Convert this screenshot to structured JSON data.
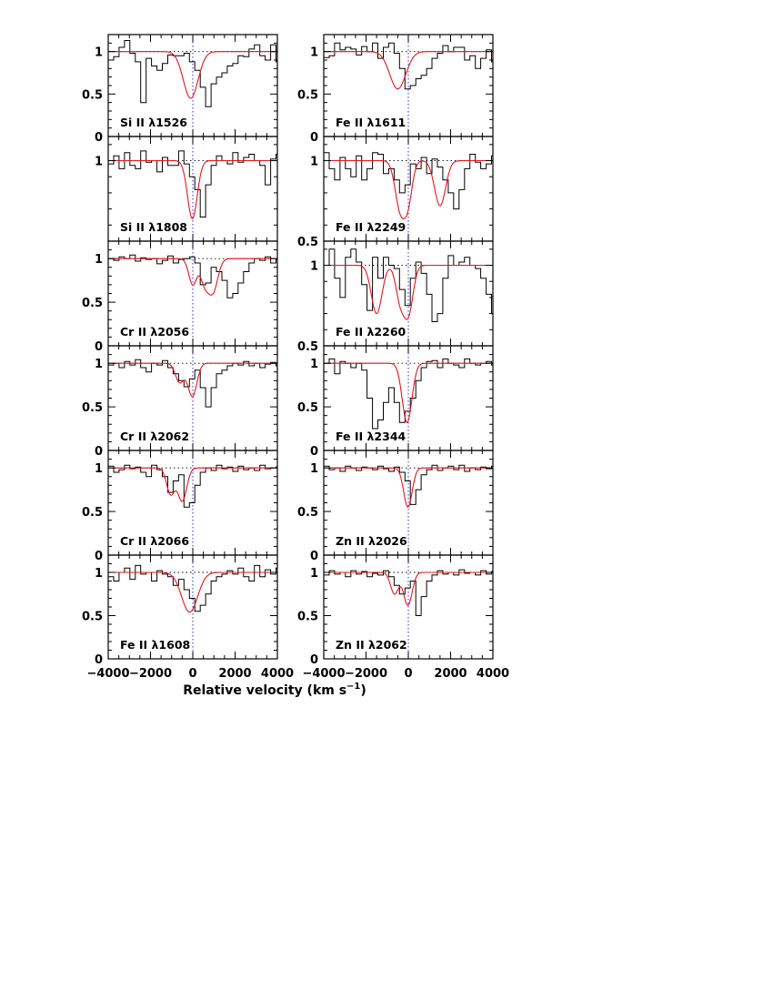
{
  "chart_data": {
    "type": "line",
    "xlabel": "Relative velocity (km s",
    "xlabel_sup": "−1",
    "xlabel_close": ")",
    "xlim": [
      -4000,
      4000
    ],
    "x_ticks": [
      "−4000",
      "−2000",
      "0",
      "2000",
      "4000"
    ],
    "colors": {
      "data": "#000000",
      "model": "#e8141b",
      "zero_velocity": "#2a2ae0",
      "reference": "#000000"
    },
    "bin_width_kms": 256,
    "x_start": -4000,
    "panels": [
      {
        "label": "Si II λ1526",
        "ylim": [
          0,
          1.2
        ],
        "yticks": [
          "0",
          "0.5",
          "1"
        ],
        "model": [
          {
            "center": -100,
            "depth": 0.55,
            "sigma": 350
          }
        ],
        "flux": [
          0.9,
          0.94,
          1.05,
          1.13,
          0.98,
          0.88,
          0.4,
          0.92,
          0.83,
          0.78,
          0.86,
          0.96,
          0.95,
          0.95,
          0.98,
          0.88,
          0.78,
          0.58,
          0.35,
          0.62,
          0.7,
          0.75,
          0.83,
          0.86,
          0.95,
          0.94,
          1.03,
          1.08,
          0.95,
          0.9,
          1.08,
          0.88,
          1.05
        ]
      },
      {
        "label": "Fe II λ1611",
        "ylim": [
          0,
          1.2
        ],
        "yticks": [
          "0",
          "0.5",
          "1"
        ],
        "model": [
          {
            "center": -500,
            "depth": 0.44,
            "sigma": 380
          }
        ],
        "flux": [
          0.93,
          0.95,
          1.1,
          1.02,
          1.05,
          1.03,
          0.96,
          1.06,
          1.0,
          1.1,
          0.92,
          1.05,
          1.1,
          0.98,
          0.8,
          0.56,
          0.6,
          0.68,
          0.72,
          0.8,
          0.92,
          0.98,
          1.07,
          1.0,
          1.05,
          1.05,
          0.9,
          0.95,
          0.8,
          0.92,
          1.02,
          0.88,
          0.98
        ]
      },
      {
        "label": "Si II λ1808",
        "ylim": [
          0.5,
          1.15
        ],
        "yticks": [
          "1"
        ],
        "model": [
          {
            "center": -20,
            "depth": 0.36,
            "sigma": 230
          }
        ],
        "flux": [
          0.98,
          1.03,
          0.95,
          1.05,
          0.97,
          0.95,
          1.06,
          0.99,
          1.0,
          0.93,
          1.02,
          0.97,
          0.97,
          1.06,
          0.98,
          0.9,
          0.82,
          0.65,
          0.85,
          0.97,
          1.03,
          1.0,
          0.98,
          1.05,
          0.99,
          1.02,
          1.04,
          1.0,
          0.97,
          0.85,
          1.01,
          1.04,
          0.98
        ]
      },
      {
        "label": "Fe II λ2249",
        "ylim": [
          0.5,
          1.15
        ],
        "yticks": [
          "0.5",
          "1"
        ],
        "model": [
          {
            "center": -380,
            "depth": 0.3,
            "sigma": 240
          },
          {
            "center": 0,
            "depth": 0.22,
            "sigma": 200
          },
          {
            "center": 1500,
            "depth": 0.28,
            "sigma": 260
          }
        ],
        "flux": [
          1.05,
          0.95,
          0.88,
          1.02,
          0.95,
          0.9,
          1.03,
          0.88,
          0.95,
          1.05,
          1.04,
          0.92,
          0.95,
          0.88,
          0.8,
          0.85,
          0.98,
          0.95,
          1.02,
          0.92,
          1.01,
          0.96,
          0.88,
          0.8,
          0.7,
          0.82,
          0.95,
          1.04,
          0.99,
          0.95,
          0.98,
          1.03,
          1.01
        ]
      },
      {
        "label": "Cr II λ2056",
        "ylim": [
          0,
          1.2
        ],
        "yticks": [
          "0",
          "0.5",
          "1"
        ],
        "model": [
          {
            "center": 0,
            "depth": 0.3,
            "sigma": 190
          },
          {
            "center": 550,
            "depth": 0.25,
            "sigma": 190
          },
          {
            "center": 950,
            "depth": 0.38,
            "sigma": 230
          }
        ],
        "flux": [
          1.0,
          0.98,
          1.02,
          1.0,
          1.04,
          0.97,
          1.01,
          0.99,
          1.0,
          0.94,
          0.98,
          1.03,
          0.95,
          0.99,
          1.0,
          1.02,
          0.95,
          0.7,
          0.72,
          0.9,
          0.85,
          0.75,
          0.55,
          0.6,
          0.72,
          0.85,
          0.95,
          1.0,
          0.98,
          1.02,
          0.95,
          0.99,
          1.0
        ]
      },
      {
        "label": "Fe II λ2260",
        "ylim": [
          0.5,
          1.15
        ],
        "yticks": [
          "0.5",
          "1"
        ],
        "model": [
          {
            "center": -1500,
            "depth": 0.3,
            "sigma": 250
          },
          {
            "center": -400,
            "depth": 0.2,
            "sigma": 200
          },
          {
            "center": 0,
            "depth": 0.3,
            "sigma": 220
          }
        ],
        "flux": [
          1.0,
          1.1,
          0.92,
          0.8,
          1.05,
          1.1,
          1.02,
          0.88,
          0.72,
          1.05,
          0.92,
          1.05,
          1.0,
          0.98,
          0.85,
          0.75,
          0.92,
          1.02,
          0.95,
          0.82,
          0.65,
          0.7,
          0.92,
          1.06,
          1.0,
          1.02,
          1.05,
          1.0,
          0.98,
          0.92,
          0.82,
          0.7,
          0.55
        ]
      },
      {
        "label": "Cr II λ2062",
        "ylim": [
          0,
          1.2
        ],
        "yticks": [
          "0",
          "0.5",
          "1"
        ],
        "model": [
          {
            "center": -620,
            "depth": 0.22,
            "sigma": 200
          },
          {
            "center": -20,
            "depth": 0.38,
            "sigma": 210
          }
        ],
        "flux": [
          0.98,
          1.0,
          0.95,
          1.02,
          0.98,
          1.04,
          0.95,
          0.9,
          1.0,
          0.98,
          1.03,
          0.95,
          0.88,
          0.8,
          0.73,
          0.82,
          0.92,
          0.72,
          0.5,
          0.72,
          0.88,
          0.92,
          0.97,
          1.0,
          0.98,
          1.02,
          0.97,
          1.0,
          0.95,
          0.99,
          1.01,
          0.97,
          1.0
        ]
      },
      {
        "label": "Fe II λ2344",
        "ylim": [
          0,
          1.2
        ],
        "yticks": [
          "0",
          "0.5",
          "1"
        ],
        "model": [
          {
            "center": -60,
            "depth": 0.68,
            "sigma": 230
          }
        ],
        "flux": [
          1.0,
          1.05,
          0.88,
          1.02,
          1.0,
          0.95,
          1.0,
          0.92,
          0.6,
          0.25,
          0.35,
          0.55,
          0.72,
          0.55,
          0.32,
          0.45,
          0.6,
          0.8,
          0.95,
          1.02,
          1.03,
          0.95,
          1.05,
          1.0,
          0.98,
          0.95,
          1.05,
          1.0,
          0.98,
          1.0,
          1.02,
          0.98,
          1.0
        ]
      },
      {
        "label": "Cr II λ2066",
        "ylim": [
          0,
          1.2
        ],
        "yticks": [
          "0",
          "0.5",
          "1"
        ],
        "model": [
          {
            "center": -1050,
            "depth": 0.3,
            "sigma": 190
          },
          {
            "center": -500,
            "depth": 0.38,
            "sigma": 210
          }
        ],
        "flux": [
          1.02,
          0.95,
          0.98,
          1.03,
          0.99,
          1.01,
          0.95,
          0.9,
          1.03,
          0.98,
          0.9,
          0.72,
          0.85,
          0.92,
          0.55,
          0.6,
          0.8,
          0.95,
          1.0,
          0.97,
          1.03,
          0.99,
          1.01,
          0.96,
          1.02,
          0.98,
          1.0,
          0.97,
          1.03,
          0.99,
          1.0,
          1.01,
          0.98
        ]
      },
      {
        "label": "Zn II λ2026",
        "ylim": [
          0,
          1.2
        ],
        "yticks": [
          "0",
          "0.5",
          "1"
        ],
        "model": [
          {
            "center": -20,
            "depth": 0.45,
            "sigma": 200
          }
        ],
        "flux": [
          1.02,
          0.98,
          1.0,
          0.96,
          1.02,
          1.0,
          0.97,
          1.01,
          1.0,
          0.98,
          1.02,
          0.99,
          0.96,
          1.01,
          0.95,
          0.85,
          0.58,
          0.75,
          0.92,
          0.98,
          1.03,
          0.97,
          1.0,
          1.02,
          0.98,
          1.03,
          0.96,
          1.0,
          0.98,
          1.01,
          0.99,
          1.02,
          0.97
        ]
      },
      {
        "label": "Fe II λ1608",
        "ylim": [
          0,
          1.2
        ],
        "yticks": [
          "0",
          "0.5",
          "1"
        ],
        "model": [
          {
            "center": -150,
            "depth": 0.46,
            "sigma": 380
          }
        ],
        "flux": [
          0.95,
          0.9,
          1.0,
          1.05,
          0.92,
          1.08,
          0.98,
          1.0,
          0.9,
          1.02,
          0.98,
          0.95,
          0.85,
          0.92,
          0.8,
          0.7,
          0.55,
          0.62,
          0.75,
          0.9,
          0.95,
          0.98,
          1.02,
          0.98,
          1.05,
          0.95,
          0.9,
          1.08,
          0.95,
          1.03,
          0.98,
          1.05,
          1.0
        ]
      },
      {
        "label": "Zn II λ2062",
        "ylim": [
          0,
          1.2
        ],
        "yticks": [
          "0",
          "0.5",
          "1"
        ],
        "model": [
          {
            "center": -650,
            "depth": 0.25,
            "sigma": 190
          },
          {
            "center": -20,
            "depth": 0.38,
            "sigma": 200
          }
        ],
        "flux": [
          0.97,
          1.02,
          0.98,
          1.0,
          0.95,
          1.02,
          0.98,
          1.01,
          0.95,
          0.99,
          0.97,
          1.02,
          0.95,
          0.85,
          0.75,
          0.82,
          0.9,
          0.5,
          0.72,
          0.9,
          0.97,
          1.02,
          0.98,
          1.0,
          0.97,
          1.03,
          0.99,
          1.0,
          0.97,
          1.02,
          0.98,
          1.01,
          1.0
        ]
      }
    ]
  }
}
